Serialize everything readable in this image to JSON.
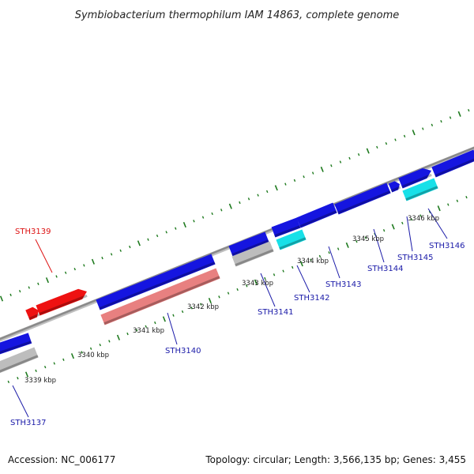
{
  "title": "Symbiobacterium thermophilum IAM 14863, complete genome",
  "footer": {
    "accession": "Accession: NC_006177",
    "summary": "Topology: circular; Length: 3,566,135 bp; Genes: 3,455"
  },
  "colors": {
    "backbone": "#8a8a8a",
    "tick": "#1e7a1e",
    "gene_blue": "#1515e0",
    "gene_red": "#ee1111",
    "gene_pink": "#e88080",
    "gene_grey": "#bdbdbd",
    "gene_cyan": "#18e0e8",
    "label_blue": "#1a1aa8",
    "label_red": "#dd1111"
  },
  "kbp_labels": [
    "3339 kbp",
    "3340 kbp",
    "3341 kbp",
    "3342 kbp",
    "3343 kbp",
    "3344 kbp",
    "3345 kbp",
    "3346 kbp"
  ],
  "genes": [
    {
      "name": "STH3137",
      "color": "label_blue"
    },
    {
      "name": "STH3139",
      "color": "label_red"
    },
    {
      "name": "STH3140",
      "color": "label_blue"
    },
    {
      "name": "STH3141",
      "color": "label_blue"
    },
    {
      "name": "STH3142",
      "color": "label_blue"
    },
    {
      "name": "STH3143",
      "color": "label_blue"
    },
    {
      "name": "STH3144",
      "color": "label_blue"
    },
    {
      "name": "STH3145",
      "color": "label_blue"
    },
    {
      "name": "STH3146",
      "color": "label_blue"
    }
  ]
}
